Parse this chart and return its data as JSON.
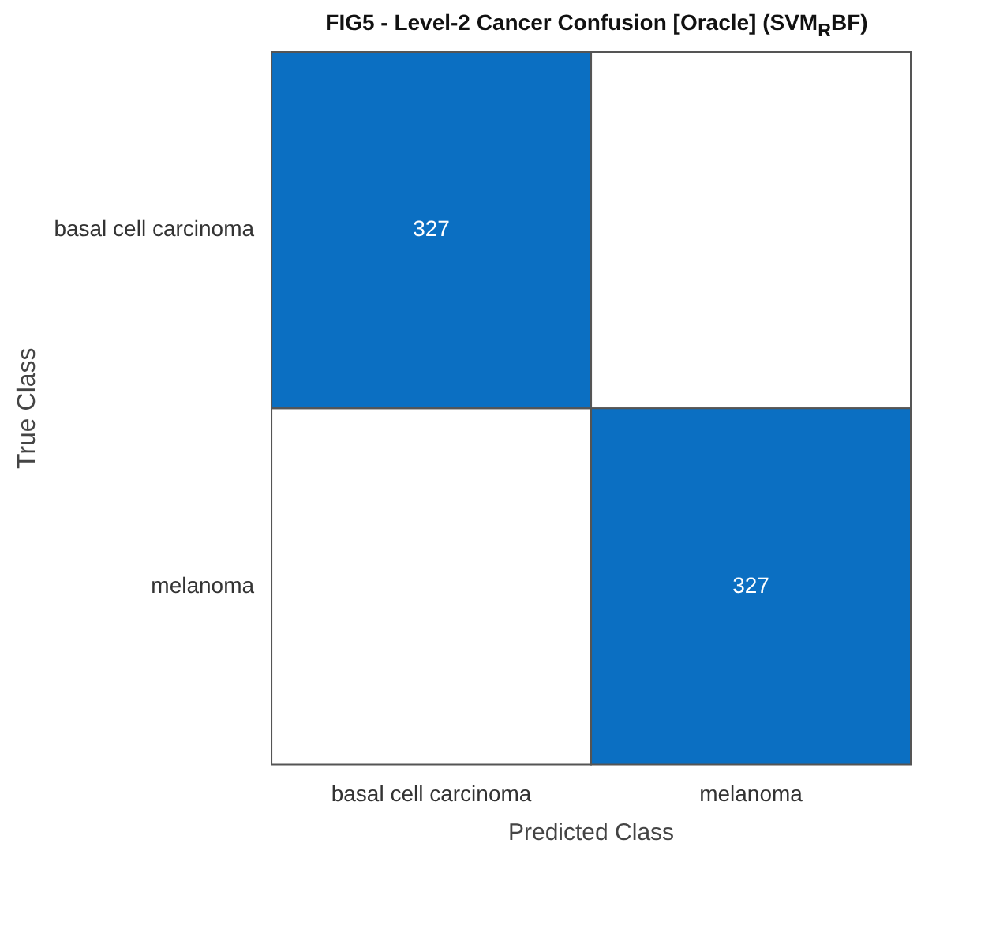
{
  "chart_data": {
    "type": "heatmap",
    "title": "FIG5 - Level-2 Cancer Confusion [Oracle] (SVM$_{R}$BF)",
    "xlabel": "Predicted Class",
    "ylabel": "True Class",
    "categories": [
      "basal cell carcinoma",
      "melanoma"
    ],
    "y_categories": [
      "basal cell carcinoma",
      "melanoma"
    ],
    "cells": [
      [
        327,
        null
      ],
      [
        null,
        327
      ]
    ],
    "data_labels": true,
    "color": "#0b6fc2"
  }
}
